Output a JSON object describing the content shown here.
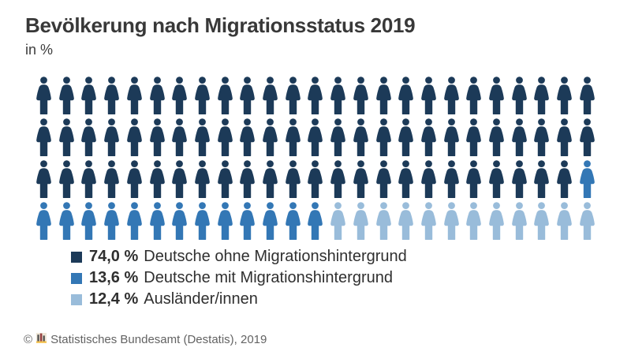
{
  "header": {
    "title": "Bevölkerung nach Migrationsstatus 2019",
    "subtitle": "in %"
  },
  "chart_data": {
    "type": "pictogram",
    "title": "Bevölkerung nach Migrationsstatus 2019",
    "subtitle": "in %",
    "unit": "%",
    "icons_total": 100,
    "icons_per_row": 25,
    "rows": 4,
    "icon_glyph": "person",
    "legend_position": "bottom",
    "series": [
      {
        "name": "Deutsche ohne Migrationshintergrund",
        "value": 74.0,
        "value_label": "74,0 %",
        "icon_count": 74,
        "color": "#1c3a58"
      },
      {
        "name": "Deutsche mit Migrationshintergrund",
        "value": 13.6,
        "value_label": "13,6 %",
        "icon_count": 14,
        "color": "#3377b5"
      },
      {
        "name": "Ausländer/innen",
        "value": 12.4,
        "value_label": "12,4 %",
        "icon_count": 12,
        "color": "#99bcda"
      }
    ]
  },
  "footer": {
    "copyright": "©",
    "source": "Statistisches Bundesamt (Destatis), 2019",
    "logo": {
      "name": "destatis-logo",
      "bg": "#efe7d8",
      "bar_dark": "#4a4a4a",
      "bar_red": "#953d3f",
      "base_yellow": "#f3c04b"
    }
  }
}
